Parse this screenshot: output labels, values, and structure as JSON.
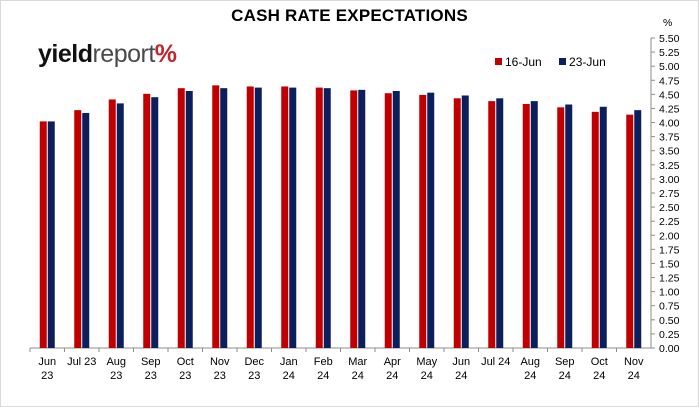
{
  "chart_data": {
    "type": "bar",
    "title": "CASH RATE EXPECTATIONS",
    "ylabel": "%",
    "ylim": [
      0,
      5.5
    ],
    "ytick_step": 0.25,
    "grid": false,
    "legend": "top-right",
    "categories": [
      [
        "Jun",
        "23"
      ],
      [
        "Jul 23",
        ""
      ],
      [
        "Aug",
        "23"
      ],
      [
        "Sep",
        "23"
      ],
      [
        "Oct",
        "23"
      ],
      [
        "Nov",
        "23"
      ],
      [
        "Dec",
        "23"
      ],
      [
        "Jan",
        "24"
      ],
      [
        "Feb",
        "24"
      ],
      [
        "Mar",
        "24"
      ],
      [
        "Apr",
        "24"
      ],
      [
        "May",
        "24"
      ],
      [
        "Jun",
        "24"
      ],
      [
        "Jul 24",
        ""
      ],
      [
        "Aug",
        "24"
      ],
      [
        "Sep",
        "24"
      ],
      [
        "Oct",
        "24"
      ],
      [
        "Nov",
        "24"
      ]
    ],
    "series": [
      {
        "name": "16-Jun",
        "color": "#c00000",
        "values": [
          4.02,
          4.22,
          4.41,
          4.51,
          4.61,
          4.66,
          4.64,
          4.64,
          4.62,
          4.57,
          4.52,
          4.49,
          4.43,
          4.38,
          4.33,
          4.27,
          4.19,
          4.14
        ]
      },
      {
        "name": "23-Jun",
        "color": "#0b1f5c",
        "values": [
          4.02,
          4.17,
          4.34,
          4.45,
          4.56,
          4.61,
          4.62,
          4.62,
          4.61,
          4.58,
          4.56,
          4.53,
          4.48,
          4.43,
          4.38,
          4.32,
          4.28,
          4.22
        ]
      }
    ]
  },
  "logo": {
    "part1": "yield",
    "part2": "report",
    "part3": "%"
  }
}
